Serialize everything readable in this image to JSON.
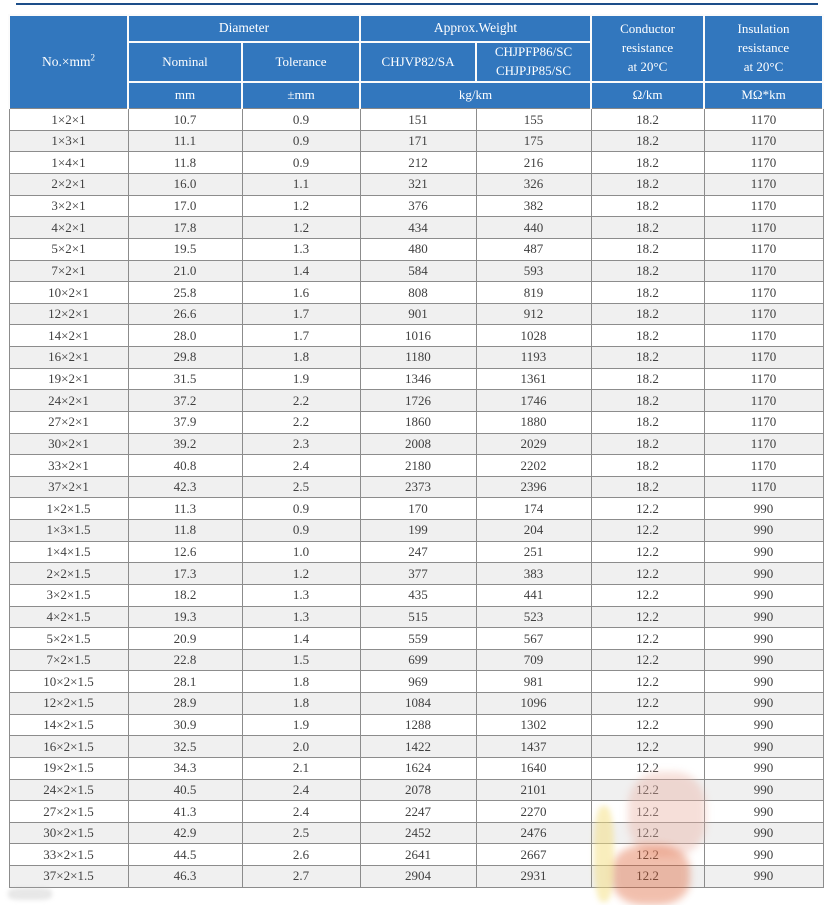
{
  "colors": {
    "header_blue": "#3277be",
    "top_rule": "#1d4e89",
    "row_stripe": "#f0f0f0",
    "grid_line": "#8c8c8c",
    "header_text": "#ffffff",
    "body_text": "#3f3f3f"
  },
  "table": {
    "header": {
      "no_base": "No.×mm",
      "no_sup": "2",
      "diameter": "Diameter",
      "approx_weight": "Approx.Weight",
      "nominal": "Nominal",
      "tolerance": "Tolerance",
      "weight_model_1": "CHJVP82/SA",
      "weight_model_2_lines": [
        "CHJPFP86/SC",
        "CHJPJP85/SC"
      ],
      "conductor_lines": [
        "Conductor",
        "resistance",
        "at 20°C"
      ],
      "insulation_lines": [
        "Insulation",
        "resistance",
        "at 20°C"
      ],
      "unit_mm": "mm",
      "unit_tolerance": "±mm",
      "unit_weight": "kg/km",
      "unit_conductor": "Ω/km",
      "unit_insulation": "MΩ*km"
    },
    "col_names": [
      "row-label-cell",
      "nominal-diameter-cell",
      "tolerance-cell",
      "weight-chjvp82-sa-cell",
      "weight-chjpfp86-chjpjp85-cell",
      "conductor-resistance-cell",
      "insulation-resistance-cell"
    ],
    "rows": [
      [
        "1×2×1",
        "10.7",
        "0.9",
        "151",
        "155",
        "18.2",
        "1170"
      ],
      [
        "1×3×1",
        "11.1",
        "0.9",
        "171",
        "175",
        "18.2",
        "1170"
      ],
      [
        "1×4×1",
        "11.8",
        "0.9",
        "212",
        "216",
        "18.2",
        "1170"
      ],
      [
        "2×2×1",
        "16.0",
        "1.1",
        "321",
        "326",
        "18.2",
        "1170"
      ],
      [
        "3×2×1",
        "17.0",
        "1.2",
        "376",
        "382",
        "18.2",
        "1170"
      ],
      [
        "4×2×1",
        "17.8",
        "1.2",
        "434",
        "440",
        "18.2",
        "1170"
      ],
      [
        "5×2×1",
        "19.5",
        "1.3",
        "480",
        "487",
        "18.2",
        "1170"
      ],
      [
        "7×2×1",
        "21.0",
        "1.4",
        "584",
        "593",
        "18.2",
        "1170"
      ],
      [
        "10×2×1",
        "25.8",
        "1.6",
        "808",
        "819",
        "18.2",
        "1170"
      ],
      [
        "12×2×1",
        "26.6",
        "1.7",
        "901",
        "912",
        "18.2",
        "1170"
      ],
      [
        "14×2×1",
        "28.0",
        "1.7",
        "1016",
        "1028",
        "18.2",
        "1170"
      ],
      [
        "16×2×1",
        "29.8",
        "1.8",
        "1180",
        "1193",
        "18.2",
        "1170"
      ],
      [
        "19×2×1",
        "31.5",
        "1.9",
        "1346",
        "1361",
        "18.2",
        "1170"
      ],
      [
        "24×2×1",
        "37.2",
        "2.2",
        "1726",
        "1746",
        "18.2",
        "1170"
      ],
      [
        "27×2×1",
        "37.9",
        "2.2",
        "1860",
        "1880",
        "18.2",
        "1170"
      ],
      [
        "30×2×1",
        "39.2",
        "2.3",
        "2008",
        "2029",
        "18.2",
        "1170"
      ],
      [
        "33×2×1",
        "40.8",
        "2.4",
        "2180",
        "2202",
        "18.2",
        "1170"
      ],
      [
        "37×2×1",
        "42.3",
        "2.5",
        "2373",
        "2396",
        "18.2",
        "1170"
      ],
      [
        "1×2×1.5",
        "11.3",
        "0.9",
        "170",
        "174",
        "12.2",
        "990"
      ],
      [
        "1×3×1.5",
        "11.8",
        "0.9",
        "199",
        "204",
        "12.2",
        "990"
      ],
      [
        "1×4×1.5",
        "12.6",
        "1.0",
        "247",
        "251",
        "12.2",
        "990"
      ],
      [
        "2×2×1.5",
        "17.3",
        "1.2",
        "377",
        "383",
        "12.2",
        "990"
      ],
      [
        "3×2×1.5",
        "18.2",
        "1.3",
        "435",
        "441",
        "12.2",
        "990"
      ],
      [
        "4×2×1.5",
        "19.3",
        "1.3",
        "515",
        "523",
        "12.2",
        "990"
      ],
      [
        "5×2×1.5",
        "20.9",
        "1.4",
        "559",
        "567",
        "12.2",
        "990"
      ],
      [
        "7×2×1.5",
        "22.8",
        "1.5",
        "699",
        "709",
        "12.2",
        "990"
      ],
      [
        "10×2×1.5",
        "28.1",
        "1.8",
        "969",
        "981",
        "12.2",
        "990"
      ],
      [
        "12×2×1.5",
        "28.9",
        "1.8",
        "1084",
        "1096",
        "12.2",
        "990"
      ],
      [
        "14×2×1.5",
        "30.9",
        "1.9",
        "1288",
        "1302",
        "12.2",
        "990"
      ],
      [
        "16×2×1.5",
        "32.5",
        "2.0",
        "1422",
        "1437",
        "12.2",
        "990"
      ],
      [
        "19×2×1.5",
        "34.3",
        "2.1",
        "1624",
        "1640",
        "12.2",
        "990"
      ],
      [
        "24×2×1.5",
        "40.5",
        "2.4",
        "2078",
        "2101",
        "12.2",
        "990"
      ],
      [
        "27×2×1.5",
        "41.3",
        "2.4",
        "2247",
        "2270",
        "12.2",
        "990"
      ],
      [
        "30×2×1.5",
        "42.9",
        "2.5",
        "2452",
        "2476",
        "12.2",
        "990"
      ],
      [
        "33×2×1.5",
        "44.5",
        "2.6",
        "2641",
        "2667",
        "12.2",
        "990"
      ],
      [
        "37×2×1.5",
        "46.3",
        "2.7",
        "2904",
        "2931",
        "12.2",
        "990"
      ]
    ]
  }
}
